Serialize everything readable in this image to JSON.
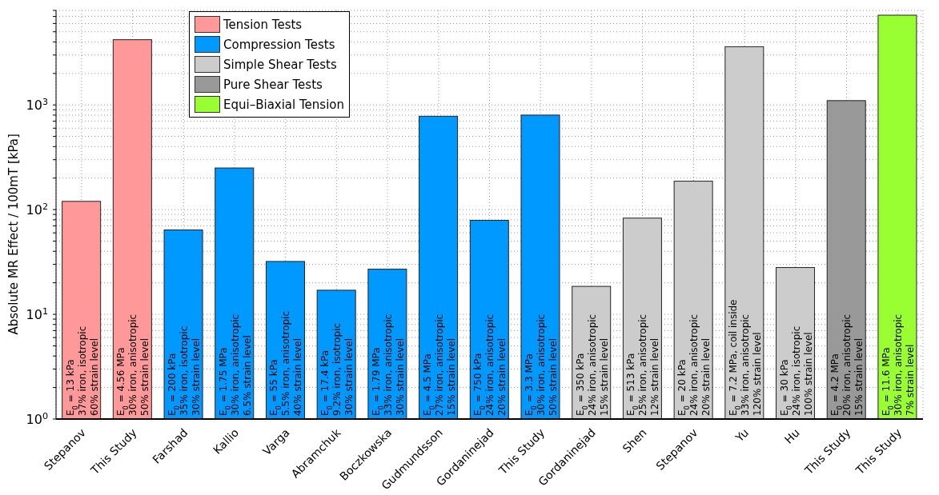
{
  "chart_data": {
    "type": "bar",
    "ylabel": "Absolute MR Effect / 100mT [kPa]",
    "categories": [
      "Stepanov",
      "This Study",
      "Farshad",
      "Kallio",
      "Varga",
      "Abramchuk",
      "Boczkowska",
      "Gudmundsson",
      "Gordaninejad",
      "This Study",
      "Gordaninejad",
      "Shen",
      "Stepanov",
      "Yu",
      "Hu",
      "This Study",
      "This Study"
    ],
    "series": [
      {
        "name": "Tension Tests",
        "color": "#ff9999",
        "values": [
          120,
          4200,
          null,
          null,
          null,
          null,
          null,
          null,
          null,
          null,
          null,
          null,
          null,
          null,
          null,
          null,
          null
        ]
      },
      {
        "name": "Compression Tests",
        "color": "#0099ff",
        "values": [
          null,
          null,
          64,
          250,
          32,
          17,
          27,
          780,
          79,
          800,
          null,
          null,
          null,
          null,
          null,
          null,
          null
        ]
      },
      {
        "name": "Simple Shear Tests",
        "color": "#cccccc",
        "values": [
          null,
          null,
          null,
          null,
          null,
          null,
          null,
          null,
          null,
          null,
          18.5,
          83,
          187,
          3600,
          28,
          null,
          null
        ]
      },
      {
        "name": "Pure Shear Tests",
        "color": "#999999",
        "values": [
          null,
          null,
          null,
          null,
          null,
          null,
          null,
          null,
          null,
          null,
          null,
          null,
          null,
          null,
          null,
          1100,
          null
        ]
      },
      {
        "name": "Equi–Biaxial Tension",
        "color": "#99ff33",
        "values": [
          null,
          null,
          null,
          null,
          null,
          null,
          null,
          null,
          null,
          null,
          null,
          null,
          null,
          null,
          null,
          null,
          7200
        ]
      }
    ],
    "log": "y",
    "ylim": [
      1,
      8000
    ],
    "yticks": [
      {
        "value": 1,
        "label": "10$^{0}$"
      },
      {
        "value": 2,
        "label": null
      },
      {
        "value": 3,
        "label": null
      },
      {
        "value": 4,
        "label": null
      },
      {
        "value": 5,
        "label": null
      },
      {
        "value": 6,
        "label": null
      },
      {
        "value": 7,
        "label": null
      },
      {
        "value": 8,
        "label": null
      },
      {
        "value": 9,
        "label": null
      },
      {
        "value": 10,
        "label": "10$^{1}$"
      },
      {
        "value": 20,
        "label": null
      },
      {
        "value": 30,
        "label": null
      },
      {
        "value": 40,
        "label": null
      },
      {
        "value": 50,
        "label": null
      },
      {
        "value": 60,
        "label": null
      },
      {
        "value": 70,
        "label": null
      },
      {
        "value": 80,
        "label": null
      },
      {
        "value": 90,
        "label": null
      },
      {
        "value": 100,
        "label": "10$^{2}$"
      },
      {
        "value": 200,
        "label": null
      },
      {
        "value": 300,
        "label": null
      },
      {
        "value": 400,
        "label": null
      },
      {
        "value": 500,
        "label": null
      },
      {
        "value": 600,
        "label": null
      },
      {
        "value": 700,
        "label": null
      },
      {
        "value": 800,
        "label": null
      },
      {
        "value": 900,
        "label": null
      },
      {
        "value": 1000,
        "label": "10$^{3}$"
      },
      {
        "value": 2000,
        "label": null
      },
      {
        "value": 3000,
        "label": null
      },
      {
        "value": 4000,
        "label": null
      },
      {
        "value": 5000,
        "label": null
      },
      {
        "value": 6000,
        "label": null
      },
      {
        "value": 7000,
        "label": null
      },
      {
        "value": 8000,
        "label": null
      }
    ],
    "grid": true,
    "legend": "top left",
    "annotations": [
      "E$_{0}$ = 13 kPa\n37% iron, isotropic\n60% strain level",
      "E$_{0}$ = 4.56 MPa\n30% iron, anisotropic\n50% strain level",
      "E$_{0}$ = 200 kPa\n35% iron, isotropic\n30% strain level",
      "E$_{0}$ = 1.75 MPa\n30% iron, anisotropic\n6.5% strain level",
      "E$_{0}$ = 55 kPa\n5.5% iron, anisotropic\n40% strain level",
      "E$_{0}$ = 17.4 kPa\n9.2% iron, isotropic\n30% strain level",
      "E$_{0}$ = 1.79 MPa\n33% iron, anisotropic\n30% strain level",
      "E$_{0}$ = 4.5 MPa\n27% iron, anisotropic\n15% strain level",
      "E$_{0}$ = 750 kPa\n24% iron, anisotropic\n20% strain level",
      "E$_{0}$ = 3.3 MPa\n30% iron, anisotropic\n50% strain level",
      "E$_{0}$ = 350 kPa\n24% iron, anisotropic\n15% strain level",
      "E$_{0}$ = 513 kPa\n25% iron, anisotropic\n12% strain level",
      "E$_{0}$ = 20 kPa\n24% iron, anisotropic\n20% strain level",
      "E$_{0}$ = 7.2 MPa, coil inside\n33% iron, anisotropic\n120% strain level",
      "E$_{0}$ = 30 kPa\n24% iron, isotropic\n100% strain level",
      "E$_{0}$ = 4.2 MPa\n20% iron, anisotropic\n15% strain level",
      "E$_{0}$ = 11.6 MPa\n30% iron, anisotropic\n7% strain level"
    ]
  }
}
